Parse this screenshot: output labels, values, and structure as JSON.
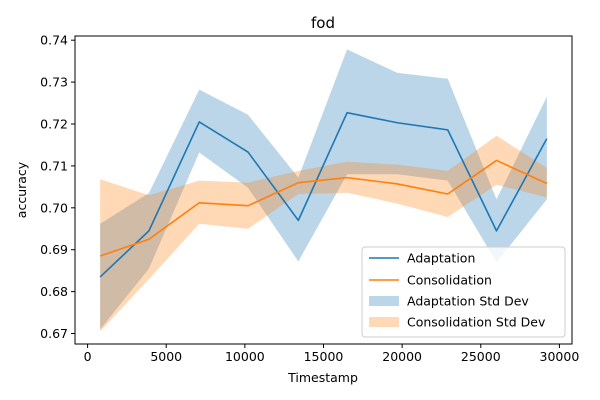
{
  "chart_data": {
    "type": "line",
    "title": "fod",
    "xlabel": "Timestamp",
    "ylabel": "accuracy",
    "xlim": [
      -800,
      30800
    ],
    "ylim": [
      0.6675,
      0.741
    ],
    "xticks": [
      0,
      5000,
      10000,
      15000,
      20000,
      25000,
      30000
    ],
    "xtick_labels": [
      "0",
      "5000",
      "10000",
      "15000",
      "20000",
      "25000",
      "30000"
    ],
    "yticks": [
      0.67,
      0.68,
      0.69,
      0.7,
      0.71,
      0.72,
      0.73,
      0.74
    ],
    "ytick_labels": [
      "0.67",
      "0.68",
      "0.69",
      "0.70",
      "0.71",
      "0.72",
      "0.73",
      "0.74"
    ],
    "grid": false,
    "legend_position": "lower-right",
    "x": [
      800,
      3900,
      7100,
      10200,
      13400,
      16500,
      19700,
      22900,
      26000,
      29200
    ],
    "series": [
      {
        "name": "Adaptation",
        "color": "#1f77b4",
        "values": [
          0.6835,
          0.6945,
          0.7205,
          0.7133,
          0.697,
          0.7227,
          0.7203,
          0.7186,
          0.6945,
          0.7165
        ]
      },
      {
        "name": "Consolidation",
        "color": "#ff7f0e",
        "values": [
          0.6885,
          0.6925,
          0.7012,
          0.7005,
          0.706,
          0.7072,
          0.7057,
          0.7033,
          0.7113,
          0.7058
        ]
      }
    ],
    "bands": [
      {
        "name": "Adaptation Std Dev",
        "color": "#1f77b4",
        "opacity": 0.3,
        "lower": [
          0.671,
          0.6855,
          0.7132,
          0.7048,
          0.6872,
          0.708,
          0.708,
          0.7065,
          0.687,
          0.702
        ],
        "upper": [
          0.6962,
          0.7035,
          0.7282,
          0.7222,
          0.7072,
          0.7378,
          0.7322,
          0.7308,
          0.702,
          0.7265
        ]
      },
      {
        "name": "Consolidation Std Dev",
        "color": "#ff7f0e",
        "opacity": 0.3,
        "lower": [
          0.6705,
          0.683,
          0.6962,
          0.695,
          0.7033,
          0.7036,
          0.701,
          0.6978,
          0.7055,
          0.7025
        ],
        "upper": [
          0.7068,
          0.703,
          0.7065,
          0.706,
          0.7088,
          0.711,
          0.7103,
          0.7088,
          0.7172,
          0.7095
        ]
      }
    ],
    "legend": [
      "Adaptation",
      "Consolidation",
      "Adaptation Std Dev",
      "Consolidation Std Dev"
    ]
  }
}
